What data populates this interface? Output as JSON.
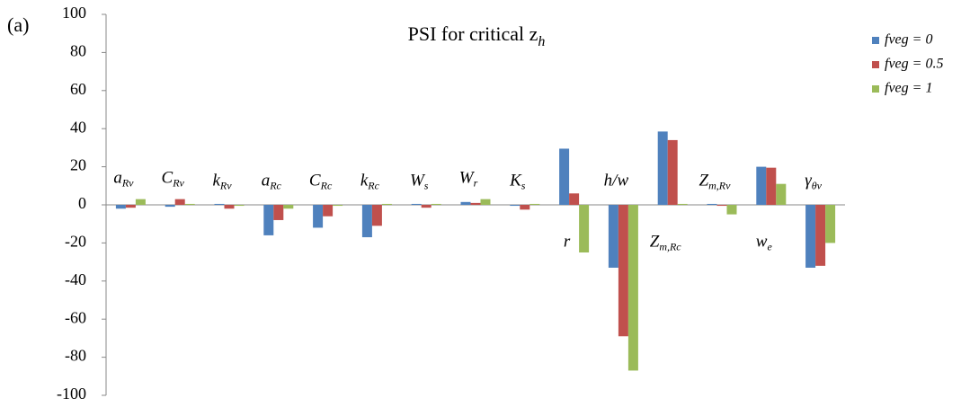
{
  "chart_data": {
    "type": "bar",
    "panel_label": "(a)",
    "title": {
      "text": "PSI for critical z",
      "sub": "h"
    },
    "categories": [
      {
        "main": "a",
        "sub": "Rv"
      },
      {
        "main": "C",
        "sub": "Rv"
      },
      {
        "main": "k",
        "sub": "Rv"
      },
      {
        "main": "a",
        "sub": "Rc"
      },
      {
        "main": "C",
        "sub": "Rc"
      },
      {
        "main": "k",
        "sub": "Rc"
      },
      {
        "main": "W",
        "sub": "s"
      },
      {
        "main": "W",
        "sub": "r"
      },
      {
        "main": "K",
        "sub": "s"
      },
      {
        "main": "r",
        "sub": ""
      },
      {
        "main": "h/w",
        "sub": ""
      },
      {
        "main": "Z",
        "sub": "m,Rc"
      },
      {
        "main": "Z",
        "sub": "m,Rv"
      },
      {
        "main": "w",
        "sub": "e"
      },
      {
        "main": "γ",
        "sub": "θv"
      }
    ],
    "series": [
      {
        "name": "fveg = 0",
        "color": "#4f81bd",
        "values": [
          -2,
          -1,
          0.5,
          -16,
          -12,
          -17,
          0.5,
          1.5,
          -0.5,
          29.5,
          -33,
          38.5,
          0.5,
          20,
          -33
        ]
      },
      {
        "name": "fveg = 0.5",
        "color": "#c0504d",
        "values": [
          -1.5,
          3,
          -2,
          -8,
          -6,
          -11,
          -1.5,
          1,
          -2.5,
          6,
          -69,
          34,
          -0.5,
          19.5,
          -32
        ]
      },
      {
        "name": "fveg = 1",
        "color": "#9bbb59",
        "values": [
          3,
          0.5,
          -0.5,
          -2,
          -0.5,
          0.5,
          0.5,
          3,
          0.5,
          -25,
          -87,
          0.5,
          -5,
          11,
          -20
        ]
      }
    ],
    "ylim": [
      -100,
      100
    ],
    "yticks": [
      -100,
      -80,
      -60,
      -40,
      -20,
      0,
      20,
      40,
      60,
      80,
      100
    ],
    "legend": "right"
  }
}
